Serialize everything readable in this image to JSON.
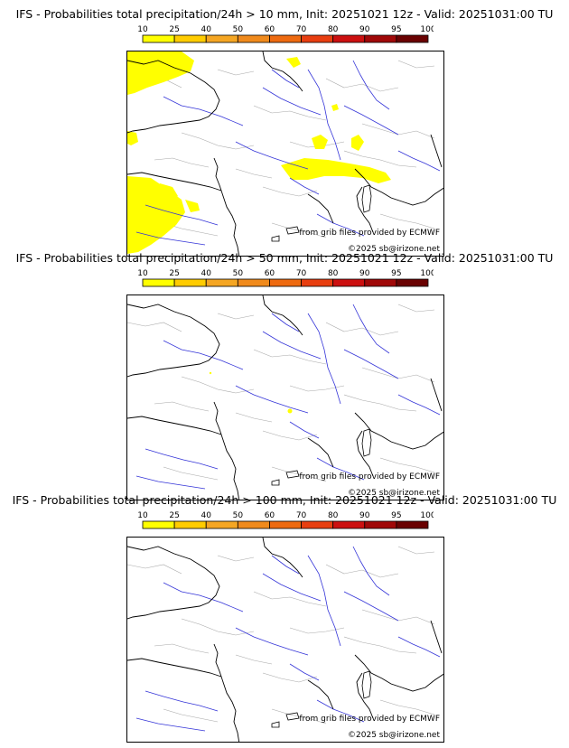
{
  "scale": {
    "ticks": [
      "10",
      "25",
      "40",
      "50",
      "60",
      "70",
      "80",
      "90",
      "95",
      "100"
    ],
    "colors": [
      "#ffff00",
      "#ffcc00",
      "#f5a623",
      "#f08a1c",
      "#ee6a10",
      "#e83e10",
      "#cc1010",
      "#a00808",
      "#6a0202"
    ]
  },
  "panels": [
    {
      "title": "IFS - Probabilities total precipitation/24h > 10 mm, Init: 20251021 12z - Valid: 20251031:00 TU",
      "source_credit": "from grib files provided by ECMWF",
      "copyright": "©2025 sb@irizone.net",
      "has_yellow": "extensive"
    },
    {
      "title": "IFS - Probabilities total precipitation/24h > 50 mm, Init: 20251021 12z - Valid: 20251031:00 TU",
      "source_credit": "from grib files provided by ECMWF",
      "copyright": "©2025 sb@irizone.net",
      "has_yellow": "tiny"
    },
    {
      "title": "IFS - Probabilities total precipitation/24h > 100 mm, Init: 20251021 12z - Valid: 20251031:00 TU",
      "source_credit": "from grib files provided by ECMWF",
      "copyright": "©2025 sb@irizone.net",
      "has_yellow": "none"
    }
  ]
}
